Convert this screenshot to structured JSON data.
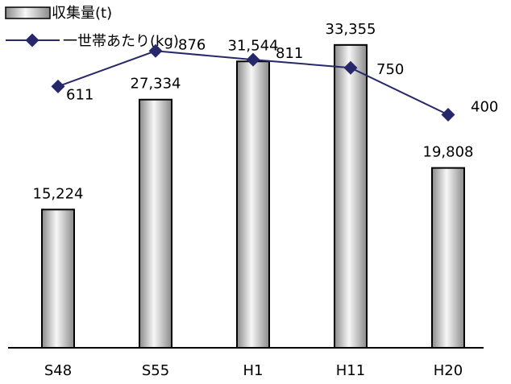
{
  "chart_data": {
    "type": "bar",
    "categories": [
      "S48",
      "S55",
      "H1",
      "H11",
      "H20"
    ],
    "series": [
      {
        "name": "収集量(t)",
        "kind": "bar",
        "axis": "left",
        "values": [
          15224,
          27334,
          31544,
          33355,
          19808
        ],
        "labels": [
          "15,224",
          "27,334",
          "31,544",
          "33,355",
          "19,808"
        ]
      },
      {
        "name": "一世帯あたり(kg)",
        "kind": "line",
        "axis": "right",
        "values": [
          611,
          876,
          811,
          750,
          400
        ],
        "labels": [
          "611",
          "876",
          "811",
          "750",
          "400"
        ]
      }
    ],
    "bar_ylim": [
      0,
      36000
    ],
    "line_ylim": [
      -1340,
      1100
    ],
    "legend_position": "top-left",
    "grid": false,
    "colors": {
      "line": "#27286b",
      "marker": "#27286b",
      "bar_edge": "#000000",
      "axis": "#000000"
    }
  }
}
